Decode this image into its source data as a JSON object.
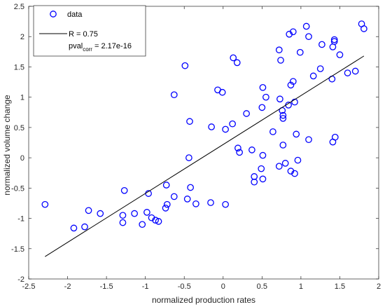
{
  "chart_data": {
    "type": "scatter",
    "xlabel": "normalized production rates",
    "ylabel": "normalized volume change",
    "xlim": [
      -2.5,
      2
    ],
    "ylim": [
      -2,
      2.5
    ],
    "x_ticks": [
      "-2.5",
      "-2",
      "-1.5",
      "-1",
      "-0.5",
      "0",
      "0.5",
      "1",
      "1.5",
      "2"
    ],
    "y_ticks": [
      "-2",
      "-1.5",
      "-1",
      "-0.5",
      "0",
      "0.5",
      "1",
      "1.5",
      "2",
      "2.5"
    ],
    "grid": false,
    "legend_position": "top-left",
    "legend": {
      "data_label": "data",
      "fit_label": "R = 0.75",
      "pval_main": "pval",
      "pval_sub": "corr",
      "pval_value": " = 2.17e-16"
    },
    "series": [
      {
        "name": "data",
        "marker": "circle",
        "color": "#0000FF",
        "points": [
          [
            -2.29,
            -0.77
          ],
          [
            -1.92,
            -1.16
          ],
          [
            -1.78,
            -1.14
          ],
          [
            -1.73,
            -0.87
          ],
          [
            -1.58,
            -0.92
          ],
          [
            -1.29,
            -0.95
          ],
          [
            -1.29,
            -1.07
          ],
          [
            -1.27,
            -0.54
          ],
          [
            -1.14,
            -0.92
          ],
          [
            -1.04,
            -1.1
          ],
          [
            -0.98,
            -0.9
          ],
          [
            -0.96,
            -0.59
          ],
          [
            -0.92,
            -0.99
          ],
          [
            -0.87,
            -1.03
          ],
          [
            -0.83,
            -1.05
          ],
          [
            -0.74,
            -0.83
          ],
          [
            -0.72,
            -0.77
          ],
          [
            -0.73,
            -0.45
          ],
          [
            -0.63,
            -0.64
          ],
          [
            -0.63,
            1.04
          ],
          [
            -0.49,
            1.52
          ],
          [
            -0.46,
            -0.68
          ],
          [
            -0.44,
            0.0
          ],
          [
            -0.43,
            0.6
          ],
          [
            -0.42,
            -0.49
          ],
          [
            -0.35,
            -0.76
          ],
          [
            -0.16,
            -0.74
          ],
          [
            -0.15,
            0.51
          ],
          [
            -0.07,
            1.12
          ],
          [
            -0.01,
            1.08
          ],
          [
            0.03,
            0.47
          ],
          [
            0.03,
            -0.77
          ],
          [
            0.12,
            0.56
          ],
          [
            0.13,
            1.65
          ],
          [
            0.18,
            1.57
          ],
          [
            0.19,
            0.16
          ],
          [
            0.21,
            0.09
          ],
          [
            0.3,
            0.73
          ],
          [
            0.37,
            0.13
          ],
          [
            0.4,
            -0.31
          ],
          [
            0.4,
            -0.4
          ],
          [
            0.49,
            -0.18
          ],
          [
            0.5,
            0.83
          ],
          [
            0.51,
            1.16
          ],
          [
            0.51,
            0.04
          ],
          [
            0.51,
            -0.35
          ],
          [
            0.55,
            1.0
          ],
          [
            0.64,
            0.43
          ],
          [
            0.72,
            1.78
          ],
          [
            0.72,
            -0.14
          ],
          [
            0.73,
            0.97
          ],
          [
            0.74,
            1.61
          ],
          [
            0.76,
            0.78
          ],
          [
            0.77,
            0.65
          ],
          [
            0.77,
            0.7
          ],
          [
            0.77,
            0.21
          ],
          [
            0.8,
            -0.09
          ],
          [
            0.84,
            0.87
          ],
          [
            0.85,
            2.04
          ],
          [
            0.87,
            1.2
          ],
          [
            0.87,
            -0.22
          ],
          [
            0.9,
            2.08
          ],
          [
            0.9,
            1.26
          ],
          [
            0.92,
            0.92
          ],
          [
            0.92,
            -0.26
          ],
          [
            0.94,
            0.39
          ],
          [
            0.96,
            -0.04
          ],
          [
            0.99,
            1.74
          ],
          [
            1.07,
            2.17
          ],
          [
            1.1,
            2.0
          ],
          [
            1.1,
            0.3
          ],
          [
            1.16,
            1.35
          ],
          [
            1.25,
            1.47
          ],
          [
            1.27,
            1.87
          ],
          [
            1.4,
            1.3
          ],
          [
            1.41,
            1.83
          ],
          [
            1.41,
            0.26
          ],
          [
            1.43,
            1.95
          ],
          [
            1.43,
            1.92
          ],
          [
            1.44,
            0.34
          ],
          [
            1.5,
            1.7
          ],
          [
            1.6,
            1.4
          ],
          [
            1.7,
            1.43
          ],
          [
            1.78,
            2.21
          ],
          [
            1.81,
            2.13
          ]
        ]
      },
      {
        "name": "R = 0.75",
        "type": "line",
        "color": "#000000",
        "x": [
          -2.29,
          1.81
        ],
        "y": [
          -1.63,
          1.68
        ]
      }
    ]
  }
}
